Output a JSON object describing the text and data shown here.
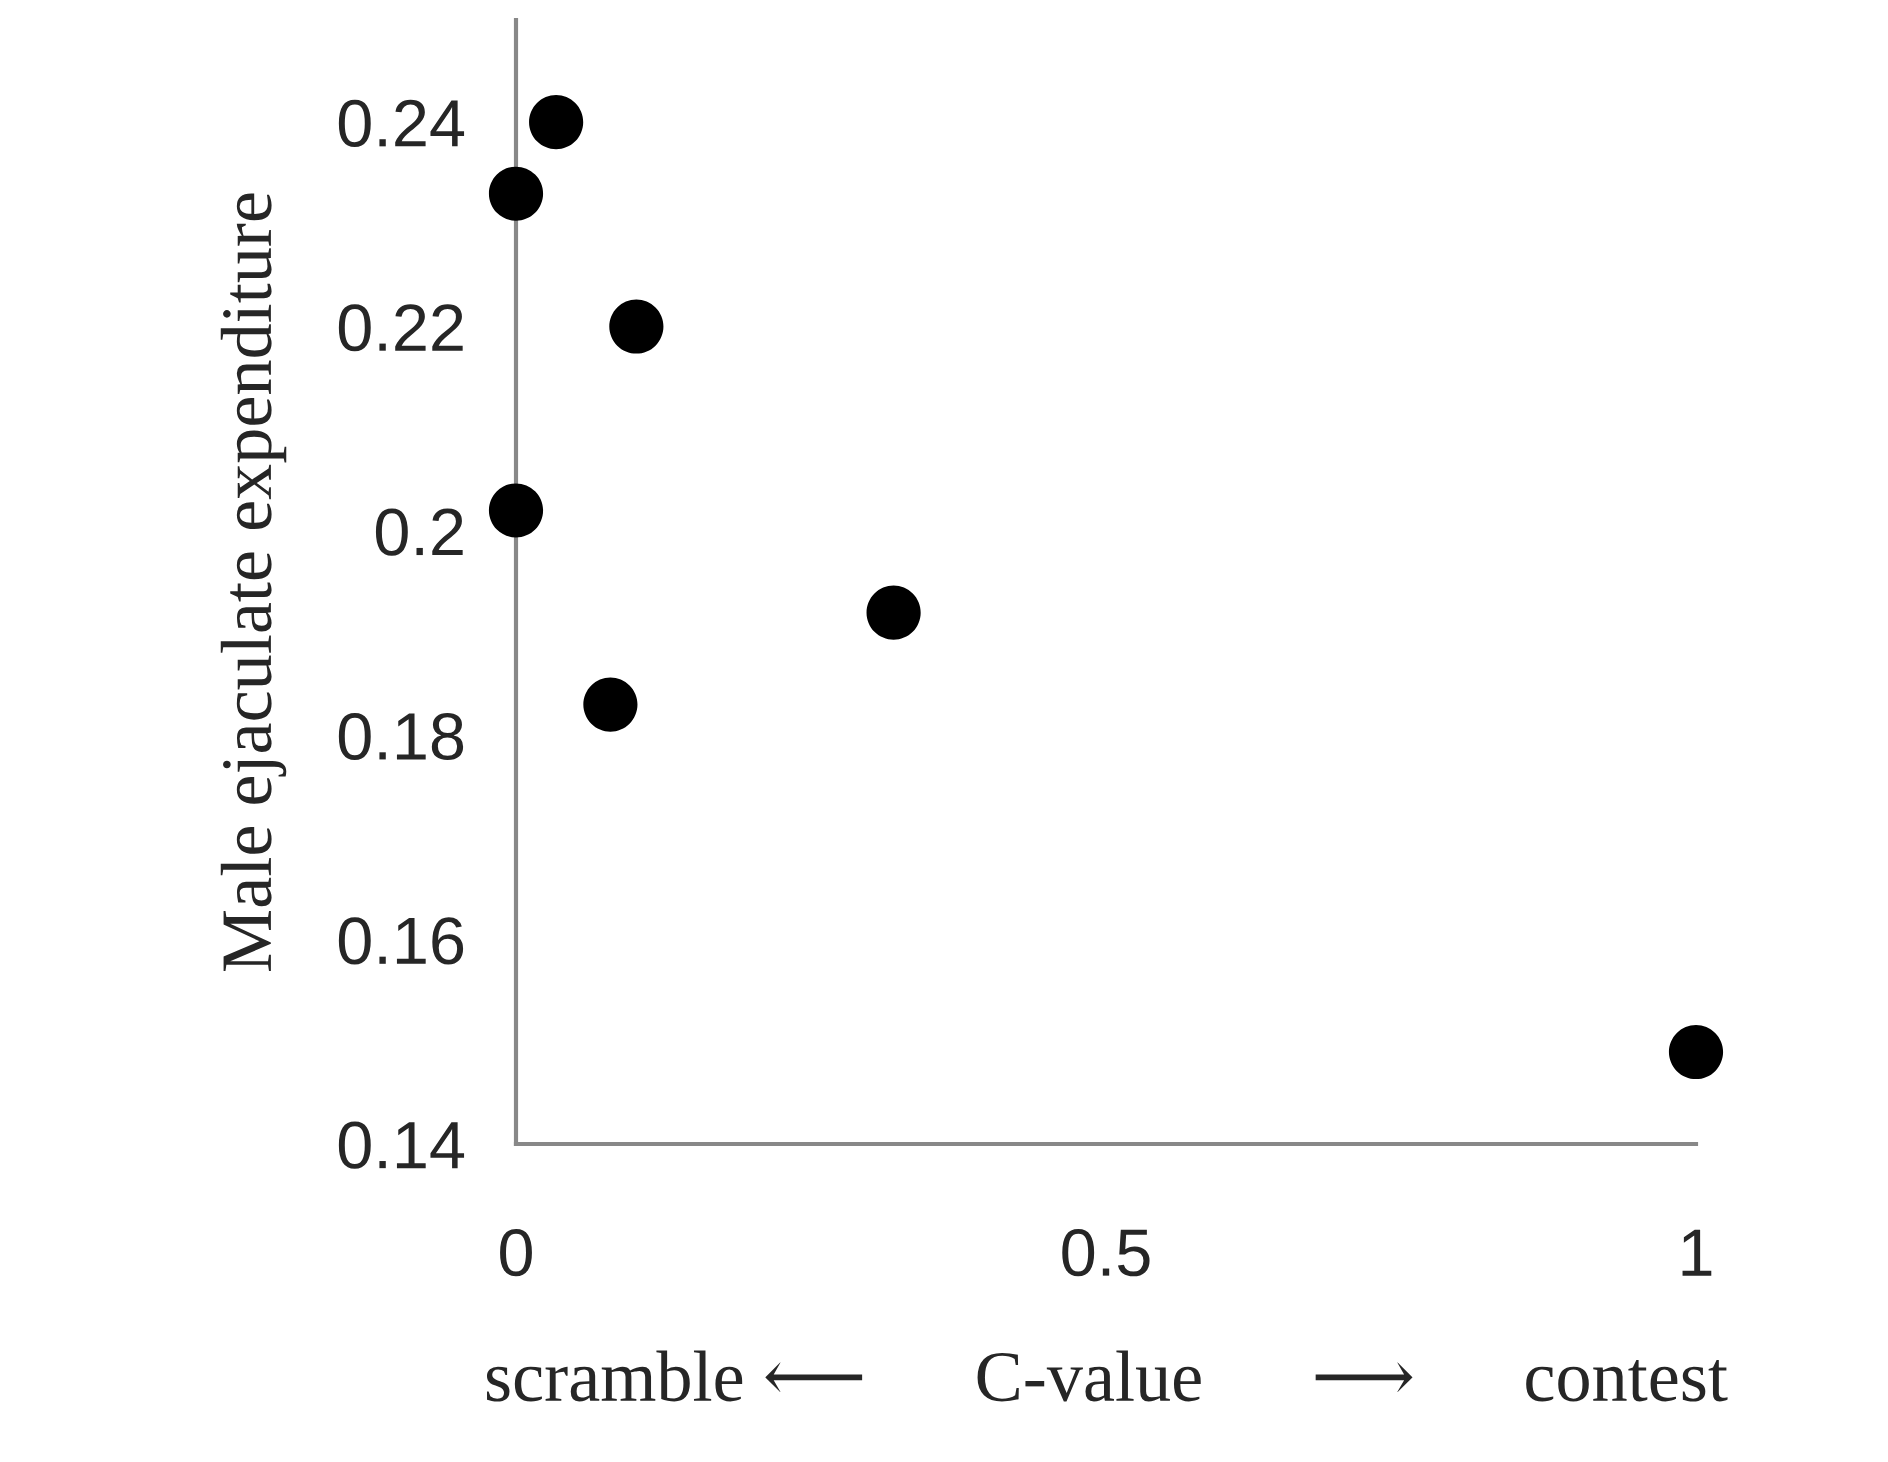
{
  "chart_data": {
    "type": "scatter",
    "xlabel": "scramble ⟵      C-value      ⟶      contest",
    "ylabel": "Male ejaculate expenditure",
    "x": [
      0.034,
      0,
      0.102,
      0,
      0.32,
      0.08,
      1
    ],
    "series": [
      {
        "color": "#000000",
        "values": [
          0.24,
          0.233,
          0.22,
          0.202,
          0.192,
          0.183,
          0.149
        ]
      }
    ],
    "marker": "circle",
    "grid": false,
    "xlim": [
      0,
      1
    ],
    "xticks": [
      0,
      0.5,
      1
    ],
    "ylim": [
      0.14,
      0.25
    ],
    "yticks": [
      0.14,
      0.16,
      0.18,
      0.2,
      0.22,
      0.24
    ]
  }
}
